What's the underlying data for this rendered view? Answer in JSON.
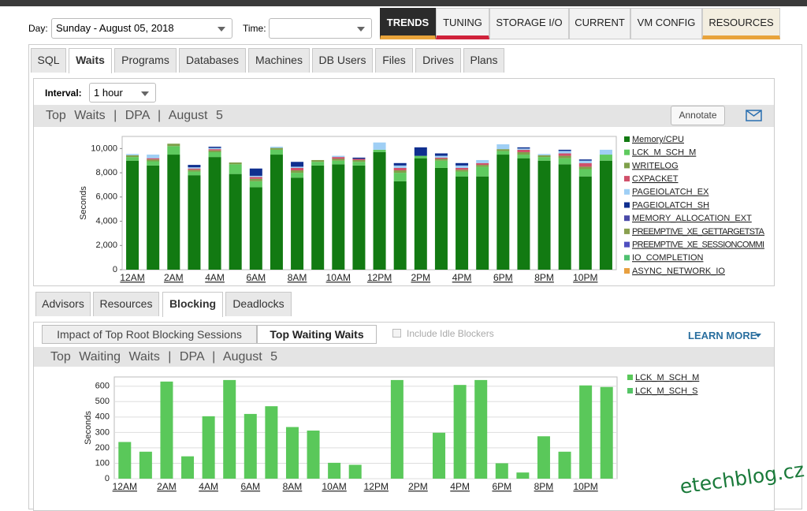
{
  "day_label": "Day:",
  "day_value": "Sunday - August 05, 2018",
  "time_label": "Time:",
  "main_tabs": [
    "TRENDS",
    "TUNING",
    "STORAGE I/O",
    "CURRENT",
    "VM CONFIG",
    "RESOURCES"
  ],
  "sub_tabs": [
    "SQL",
    "Waits",
    "Programs",
    "Databases",
    "Machines",
    "DB Users",
    "Files",
    "Drives",
    "Plans"
  ],
  "interval_label": "Interval:",
  "interval_value": "1 hour",
  "annotate": "Annotate",
  "lower_tabs": [
    "Advisors",
    "Resources",
    "Blocking",
    "Deadlocks"
  ],
  "toggle": [
    "Impact of Top Root Blocking Sessions",
    "Top Waiting Waits"
  ],
  "include_idle": "Include Idle Blockers",
  "learn_more": "LEARN MORE",
  "watermark": "etechblog.cz",
  "chart_data": [
    {
      "type": "stacked_bar",
      "title": "Top Waits | DPA | August 5",
      "ylabel": "Seconds",
      "categories": [
        "12AM",
        null,
        "2AM",
        null,
        "4AM",
        null,
        "6AM",
        null,
        "8AM",
        null,
        "10AM",
        null,
        "12PM",
        null,
        "2PM",
        null,
        "4PM",
        null,
        "6PM",
        null,
        "8PM",
        null,
        "10PM",
        null
      ],
      "ylim": [
        0,
        11000
      ],
      "yticks": [
        0,
        {
          "value": 2000,
          "label": "2,000"
        },
        {
          "value": 4000,
          "label": "4,000"
        },
        {
          "value": 6000,
          "label": "6,000"
        },
        {
          "value": 8000,
          "label": "8,000"
        },
        {
          "value": 10000,
          "label": "10,000"
        }
      ],
      "grid": false,
      "legend": "right",
      "series": [
        {
          "name": "Memory/CPU",
          "color": "#127a12",
          "values": [
            9000,
            8600,
            9500,
            7800,
            9300,
            7900,
            6800,
            9500,
            7600,
            8600,
            8700,
            8600,
            9700,
            7300,
            9200,
            8400,
            7700,
            7700,
            9500,
            9200,
            9000,
            8700,
            7700,
            9000
          ]
        },
        {
          "name": "LCK_M_SCH_M",
          "color": "#5fca5f",
          "values": [
            300,
            350,
            700,
            300,
            400,
            800,
            500,
            400,
            400,
            300,
            300,
            300,
            200,
            700,
            200,
            600,
            400,
            800,
            300,
            300,
            300,
            500,
            600,
            500
          ]
        },
        {
          "name": "WRITELOG",
          "color": "#7fa04a",
          "values": [
            150,
            150,
            200,
            150,
            150,
            150,
            200,
            150,
            200,
            150,
            150,
            150,
            0,
            200,
            0,
            150,
            150,
            150,
            150,
            200,
            150,
            200,
            200,
            0
          ]
        },
        {
          "name": "CXPACKET",
          "color": "#d0506a",
          "values": [
            0,
            100,
            0,
            100,
            100,
            0,
            150,
            0,
            200,
            0,
            150,
            100,
            0,
            200,
            0,
            100,
            150,
            150,
            0,
            200,
            0,
            200,
            300,
            0
          ]
        },
        {
          "name": "PAGEIOLATCH_EX",
          "color": "#9fcff5",
          "values": [
            100,
            300,
            0,
            100,
            100,
            0,
            100,
            100,
            100,
            0,
            100,
            0,
            600,
            200,
            0,
            150,
            200,
            250,
            400,
            100,
            100,
            200,
            200,
            400
          ]
        },
        {
          "name": "PAGEIOLATCH_SH",
          "color": "#0f2f8f",
          "values": [
            0,
            0,
            0,
            200,
            100,
            0,
            600,
            0,
            400,
            0,
            0,
            100,
            0,
            200,
            700,
            200,
            200,
            0,
            0,
            100,
            0,
            100,
            100,
            0
          ]
        },
        {
          "name": "MEMORY_ALLOCATION_EXT",
          "color": "#4a4aa8",
          "values": [
            0,
            0,
            0,
            0,
            0,
            0,
            0,
            0,
            0,
            0,
            0,
            0,
            0,
            0,
            0,
            0,
            0,
            0,
            0,
            0,
            0,
            0,
            0,
            0
          ]
        },
        {
          "name": "PREEMPTIVE_XE_GETTARGETSTA",
          "color": "#8aa050",
          "values": [
            0,
            0,
            0,
            0,
            0,
            0,
            0,
            0,
            0,
            0,
            0,
            0,
            0,
            0,
            0,
            0,
            0,
            0,
            0,
            0,
            0,
            0,
            0,
            0
          ]
        },
        {
          "name": "PREEMPTIVE_XE_SESSIONCOMMI",
          "color": "#4f4fc0",
          "values": [
            0,
            0,
            0,
            0,
            0,
            0,
            0,
            0,
            0,
            0,
            0,
            0,
            0,
            0,
            0,
            0,
            0,
            0,
            0,
            0,
            0,
            0,
            0,
            0
          ]
        },
        {
          "name": "IO_COMPLETION",
          "color": "#4fc070",
          "values": [
            0,
            0,
            0,
            0,
            0,
            0,
            0,
            0,
            0,
            0,
            0,
            0,
            0,
            0,
            0,
            0,
            0,
            0,
            0,
            0,
            0,
            0,
            0,
            0
          ]
        },
        {
          "name": "ASYNC_NETWORK_IO",
          "color": "#e8a040",
          "values": [
            0,
            0,
            0,
            0,
            0,
            0,
            0,
            0,
            0,
            0,
            0,
            0,
            0,
            0,
            0,
            0,
            0,
            0,
            0,
            0,
            0,
            0,
            0,
            0
          ]
        }
      ]
    },
    {
      "type": "stacked_bar",
      "title": "Top Waiting Waits | DPA | August 5",
      "ylabel": "Seconds",
      "categories": [
        "12AM",
        null,
        "2AM",
        null,
        "4AM",
        null,
        "6AM",
        null,
        "8AM",
        null,
        "10AM",
        null,
        "12PM",
        null,
        "2PM",
        null,
        "4PM",
        null,
        "6PM",
        null,
        "8PM",
        null,
        "10PM",
        null
      ],
      "ylim": [
        0,
        660
      ],
      "yticks": [
        0,
        100,
        200,
        300,
        400,
        500,
        600
      ],
      "grid": true,
      "legend": "right",
      "series": [
        {
          "name": "LCK_M_SCH_M",
          "color": "#5ac85a",
          "values": [
            238,
            175,
            630,
            145,
            405,
            640,
            420,
            470,
            335,
            312,
            103,
            90,
            0,
            640,
            0,
            298,
            608,
            640,
            100,
            40,
            275,
            175,
            605,
            595
          ]
        },
        {
          "name": "LCK_M_SCH_S",
          "color": "#55c466",
          "values": [
            0,
            0,
            0,
            0,
            0,
            0,
            0,
            0,
            0,
            0,
            0,
            0,
            0,
            0,
            0,
            0,
            0,
            0,
            0,
            0,
            0,
            0,
            0,
            0
          ]
        }
      ]
    }
  ]
}
